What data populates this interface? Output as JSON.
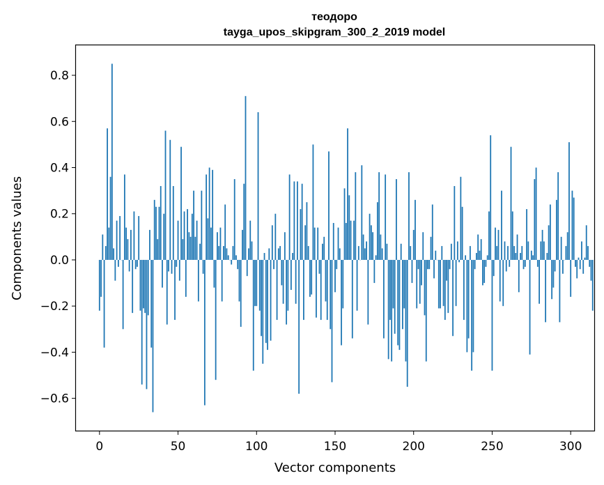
{
  "chart_data": {
    "type": "bar",
    "title_line1": "теодоро",
    "title_line2": "tayga_upos_skipgram_300_2_2019 model",
    "xlabel": "Vector components",
    "ylabel": "Components values",
    "xlim": [
      -15,
      315
    ],
    "ylim": [
      -0.74,
      0.93
    ],
    "xticks": [
      0,
      50,
      100,
      150,
      200,
      250,
      300
    ],
    "xtick_labels": [
      "0",
      "50",
      "100",
      "150",
      "200",
      "250",
      "300"
    ],
    "yticks": [
      -0.6,
      -0.4,
      -0.2,
      0.0,
      0.2,
      0.4,
      0.6,
      0.8
    ],
    "ytick_labels": [
      "−0.6",
      "−0.4",
      "−0.2",
      "0.0",
      "0.2",
      "0.4",
      "0.6",
      "0.8"
    ],
    "bar_color": "#1f77b4",
    "grid": false,
    "values": [
      -0.22,
      -0.16,
      0.11,
      -0.38,
      0.06,
      0.57,
      0.14,
      0.36,
      0.85,
      0.05,
      -0.09,
      0.17,
      -0.03,
      0.19,
      0.0,
      -0.3,
      0.37,
      0.14,
      0.09,
      -0.05,
      0.13,
      -0.23,
      0.21,
      -0.04,
      -0.03,
      0.19,
      -0.22,
      -0.54,
      -0.21,
      -0.23,
      -0.56,
      -0.24,
      0.13,
      -0.38,
      -0.66,
      0.26,
      0.23,
      0.09,
      0.23,
      0.32,
      -0.12,
      0.2,
      0.56,
      -0.28,
      -0.05,
      0.52,
      -0.06,
      0.32,
      -0.26,
      -0.03,
      0.17,
      -0.09,
      0.49,
      0.09,
      0.21,
      -0.16,
      0.22,
      0.12,
      0.1,
      0.2,
      0.3,
      0.1,
      0.17,
      -0.18,
      0.07,
      0.3,
      -0.06,
      -0.63,
      0.37,
      0.18,
      0.4,
      0.14,
      0.39,
      -0.12,
      -0.52,
      0.12,
      0.06,
      0.14,
      -0.18,
      0.06,
      0.24,
      0.05,
      0.02,
      0.0,
      -0.02,
      0.06,
      0.35,
      0.02,
      -0.04,
      -0.18,
      -0.29,
      0.13,
      0.33,
      0.71,
      -0.07,
      0.05,
      0.17,
      0.08,
      -0.48,
      -0.2,
      -0.2,
      0.64,
      -0.22,
      -0.33,
      -0.45,
      0.03,
      -0.36,
      -0.39,
      0.05,
      -0.35,
      0.15,
      -0.04,
      0.2,
      -0.26,
      0.05,
      0.06,
      -0.11,
      -0.19,
      0.12,
      -0.28,
      -0.22,
      0.37,
      -0.13,
      0.03,
      0.34,
      -0.19,
      0.34,
      -0.58,
      0.22,
      0.33,
      -0.26,
      0.15,
      0.25,
      0.06,
      -0.16,
      -0.15,
      0.5,
      0.14,
      -0.25,
      0.14,
      -0.06,
      -0.26,
      0.07,
      0.1,
      -0.18,
      -0.26,
      0.47,
      -0.3,
      -0.53,
      0.16,
      -0.14,
      -0.04,
      0.14,
      0.05,
      -0.37,
      -0.21,
      0.31,
      0.16,
      0.57,
      0.28,
      0.17,
      -0.34,
      0.17,
      0.38,
      -0.22,
      0.06,
      0.0,
      0.41,
      0.11,
      0.05,
      0.08,
      -0.28,
      0.2,
      0.15,
      0.12,
      -0.1,
      0.02,
      0.25,
      0.38,
      0.11,
      0.05,
      -0.34,
      0.37,
      0.07,
      -0.43,
      -0.26,
      -0.44,
      -0.21,
      -0.32,
      0.35,
      -0.37,
      -0.39,
      0.07,
      -0.3,
      -0.21,
      -0.44,
      -0.55,
      0.38,
      0.06,
      -0.1,
      0.13,
      0.26,
      -0.21,
      -0.04,
      -0.19,
      -0.11,
      0.12,
      -0.24,
      -0.44,
      -0.04,
      -0.04,
      0.1,
      0.24,
      -0.08,
      0.04,
      0.0,
      -0.21,
      -0.21,
      0.06,
      -0.2,
      -0.26,
      -0.09,
      -0.23,
      -0.04,
      0.07,
      -0.33,
      0.32,
      -0.2,
      0.08,
      -0.01,
      0.36,
      0.23,
      -0.26,
      0.02,
      -0.4,
      -0.34,
      0.06,
      -0.48,
      -0.4,
      -0.04,
      0.03,
      0.11,
      0.04,
      0.09,
      -0.11,
      -0.1,
      -0.03,
      0.02,
      0.21,
      0.54,
      -0.48,
      -0.07,
      0.14,
      0.06,
      0.13,
      -0.18,
      0.3,
      -0.2,
      0.08,
      -0.05,
      0.06,
      -0.03,
      0.49,
      0.21,
      0.06,
      0.03,
      0.11,
      -0.14,
      0.03,
      0.06,
      -0.04,
      -0.03,
      0.22,
      0.08,
      -0.41,
      0.04,
      0.02,
      0.35,
      0.4,
      -0.03,
      -0.19,
      0.08,
      0.13,
      0.08,
      -0.27,
      0.03,
      0.15,
      0.24,
      -0.17,
      -0.12,
      -0.05,
      0.26,
      0.38,
      -0.27,
      0.1,
      -0.06,
      0.0,
      0.06,
      0.12,
      0.51,
      -0.16,
      0.3,
      0.27,
      -0.03,
      -0.08,
      0.01,
      -0.04,
      0.08,
      -0.06,
      0.01,
      0.15,
      0.06,
      -0.03,
      -0.09,
      -0.22
    ]
  }
}
